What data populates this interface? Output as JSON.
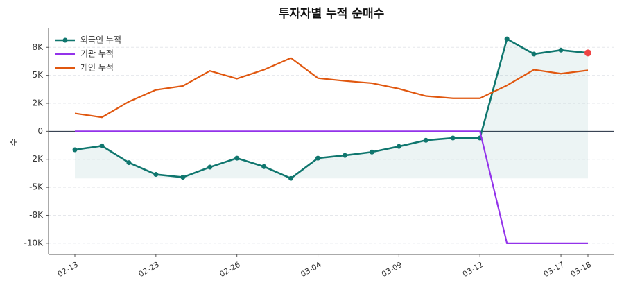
{
  "chart_data": {
    "type": "line",
    "title": "투자자별 누적 순매수",
    "y_label": "주",
    "categories": [
      "02-13",
      null,
      null,
      "02-23",
      null,
      null,
      "02-26",
      null,
      null,
      "03-04",
      null,
      null,
      "03-09",
      null,
      null,
      "03-12",
      null,
      null,
      "03-17",
      "03-18"
    ],
    "series": [
      {
        "name": "외국인 누적",
        "color": "#0f766e",
        "values": [
          -1650,
          -1300,
          -2800,
          -3850,
          -4100,
          -3200,
          -2400,
          -3150,
          -4200,
          -2400,
          -2150,
          -1850,
          -1350,
          -800,
          -600,
          -600,
          8250,
          6900,
          7250,
          7000
        ]
      },
      {
        "name": "기관 누적",
        "color": "#9333ea",
        "values": [
          0,
          0,
          0,
          0,
          0,
          0,
          0,
          0,
          0,
          0,
          0,
          0,
          0,
          0,
          0,
          0,
          -10000,
          -10000,
          -10000,
          -10000
        ]
      },
      {
        "name": "개인 누적",
        "color": "#e0570f",
        "values": [
          1600,
          1250,
          2650,
          3700,
          4050,
          5400,
          4700,
          5500,
          6550,
          4750,
          4500,
          4300,
          3800,
          3150,
          2950,
          2950,
          4100,
          5500,
          5150,
          5450
        ]
      }
    ],
    "highlight_color": "#ef4444",
    "ylim": [
      -11000,
      9250
    ],
    "yticks": [
      {
        "value": 7500,
        "label": "8K"
      },
      {
        "value": 5000,
        "label": "5K"
      },
      {
        "value": 2500,
        "label": "2K"
      },
      0,
      {
        "value": -2500,
        "label": "-2K"
      },
      {
        "value": -5000,
        "label": "-5K"
      },
      {
        "value": -7500,
        "label": "-8K"
      },
      {
        "value": -10000,
        "label": "-10K"
      }
    ],
    "grid": true,
    "legend": "upper left"
  }
}
